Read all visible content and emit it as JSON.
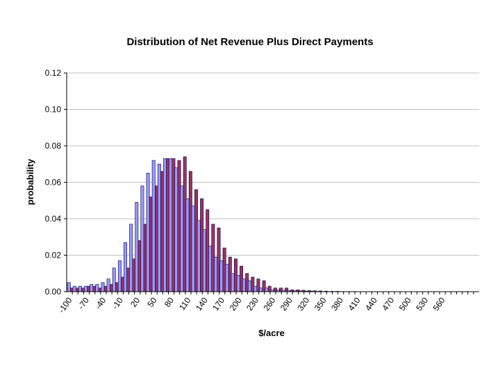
{
  "chart_data": {
    "type": "bar",
    "title": "Distribution of Net Revenue Plus Direct Payments",
    "xlabel": "$/acre",
    "ylabel": "probability",
    "ylim": [
      0,
      0.12
    ],
    "yticks": [
      "0.00",
      "0.02",
      "0.04",
      "0.06",
      "0.08",
      "0.10",
      "0.12"
    ],
    "grid": true,
    "legend": "none",
    "categories": [
      -100,
      -90,
      -80,
      -70,
      -60,
      -50,
      -40,
      -30,
      -20,
      -10,
      0,
      10,
      20,
      30,
      40,
      50,
      60,
      70,
      80,
      90,
      100,
      110,
      120,
      130,
      140,
      150,
      160,
      170,
      180,
      190,
      200,
      210,
      220,
      230,
      240,
      250,
      260,
      270,
      280,
      290,
      300,
      310,
      320,
      330,
      340,
      350,
      360,
      370,
      380,
      390,
      400,
      410,
      420,
      430,
      440,
      450,
      460,
      470,
      480,
      490,
      500,
      510,
      520,
      530,
      540,
      550,
      560,
      570,
      580,
      590,
      600,
      610,
      620
    ],
    "tick_labels": [
      "-100",
      "-70",
      "-40",
      "-10",
      "20",
      "50",
      "80",
      "110",
      "140",
      "170",
      "200",
      "230",
      "260",
      "290",
      "320",
      "350",
      "380",
      "410",
      "440",
      "470",
      "500",
      "530",
      "560"
    ],
    "series_colors": [
      "#9999ff",
      "#993366"
    ],
    "series": [
      {
        "values": [
          0.005,
          0.003,
          0.003,
          0.003,
          0.004,
          0.004,
          0.005,
          0.007,
          0.013,
          0.017,
          0.027,
          0.037,
          0.049,
          0.058,
          0.065,
          0.072,
          0.07,
          0.073,
          0.073,
          0.068,
          0.058,
          0.051,
          0.047,
          0.039,
          0.034,
          0.025,
          0.019,
          0.017,
          0.015,
          0.01,
          0.009,
          0.007,
          0.006,
          0.003,
          0.002,
          0.002,
          0.001,
          0.001,
          0.0008,
          0.0006,
          0.0005,
          0.0004,
          0.0003,
          0.0003,
          0.0002,
          0.0001,
          0.0001,
          0.0001,
          0.0001,
          0,
          0,
          0,
          0,
          0,
          0,
          0,
          0,
          0,
          0,
          0,
          0,
          0,
          0,
          0,
          0,
          0,
          0,
          0,
          0,
          0,
          0,
          0,
          0
        ]
      },
      {
        "values": [
          0.002,
          0.002,
          0.002,
          0.003,
          0.003,
          0.002,
          0.003,
          0.004,
          0.005,
          0.008,
          0.013,
          0.018,
          0.028,
          0.037,
          0.052,
          0.058,
          0.066,
          0.073,
          0.073,
          0.072,
          0.074,
          0.066,
          0.056,
          0.051,
          0.045,
          0.037,
          0.035,
          0.024,
          0.019,
          0.018,
          0.014,
          0.01,
          0.008,
          0.007,
          0.006,
          0.003,
          0.002,
          0.002,
          0.002,
          0.001,
          0.001,
          0.0008,
          0.0006,
          0.0005,
          0.0004,
          0.0003,
          0.0002,
          0.0002,
          0.0001,
          0.0001,
          0.0001,
          0,
          0,
          0,
          0,
          0,
          0,
          0,
          0,
          0,
          0,
          0,
          0,
          0,
          0,
          0,
          0,
          0,
          0,
          0,
          0,
          0,
          0
        ]
      }
    ]
  }
}
